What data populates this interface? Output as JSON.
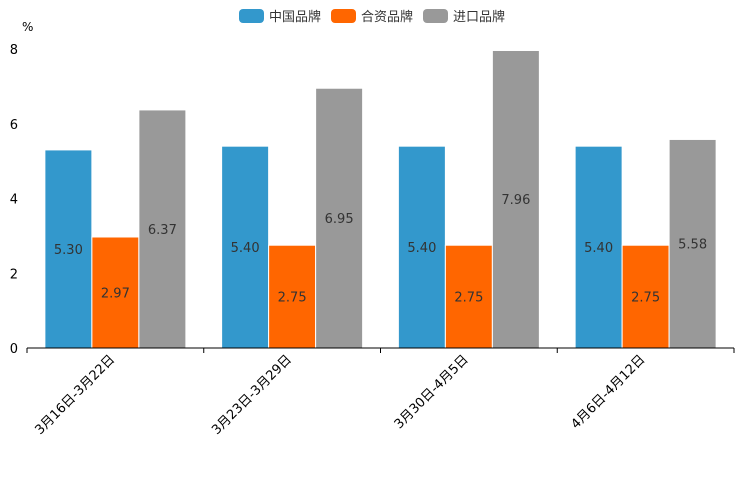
{
  "chart_data": {
    "type": "bar",
    "unit_label": "%",
    "categories": [
      "3月16日-3月22日",
      "3月23日-3月29日",
      "3月30日-4月5日",
      "4月6日-4月12日"
    ],
    "series": [
      {
        "name": "中国品牌",
        "color": "#3398cc",
        "values": [
          5.3,
          5.4,
          5.4,
          5.4
        ],
        "labels": [
          "5.30",
          "5.40",
          "5.40",
          "5.40"
        ]
      },
      {
        "name": "合资品牌",
        "color": "#ff6600",
        "values": [
          2.97,
          2.75,
          2.75,
          2.75
        ],
        "labels": [
          "2.97",
          "2.75",
          "2.75",
          "2.75"
        ]
      },
      {
        "name": "进口品牌",
        "color": "#999999",
        "values": [
          6.37,
          6.95,
          7.96,
          5.58
        ],
        "labels": [
          "6.37",
          "6.95",
          "7.96",
          "5.58"
        ]
      }
    ],
    "yticks": [
      "0",
      "2",
      "4",
      "6",
      "8"
    ],
    "ylim": [
      0,
      8
    ],
    "legend_position": "top-center",
    "grid": false
  }
}
